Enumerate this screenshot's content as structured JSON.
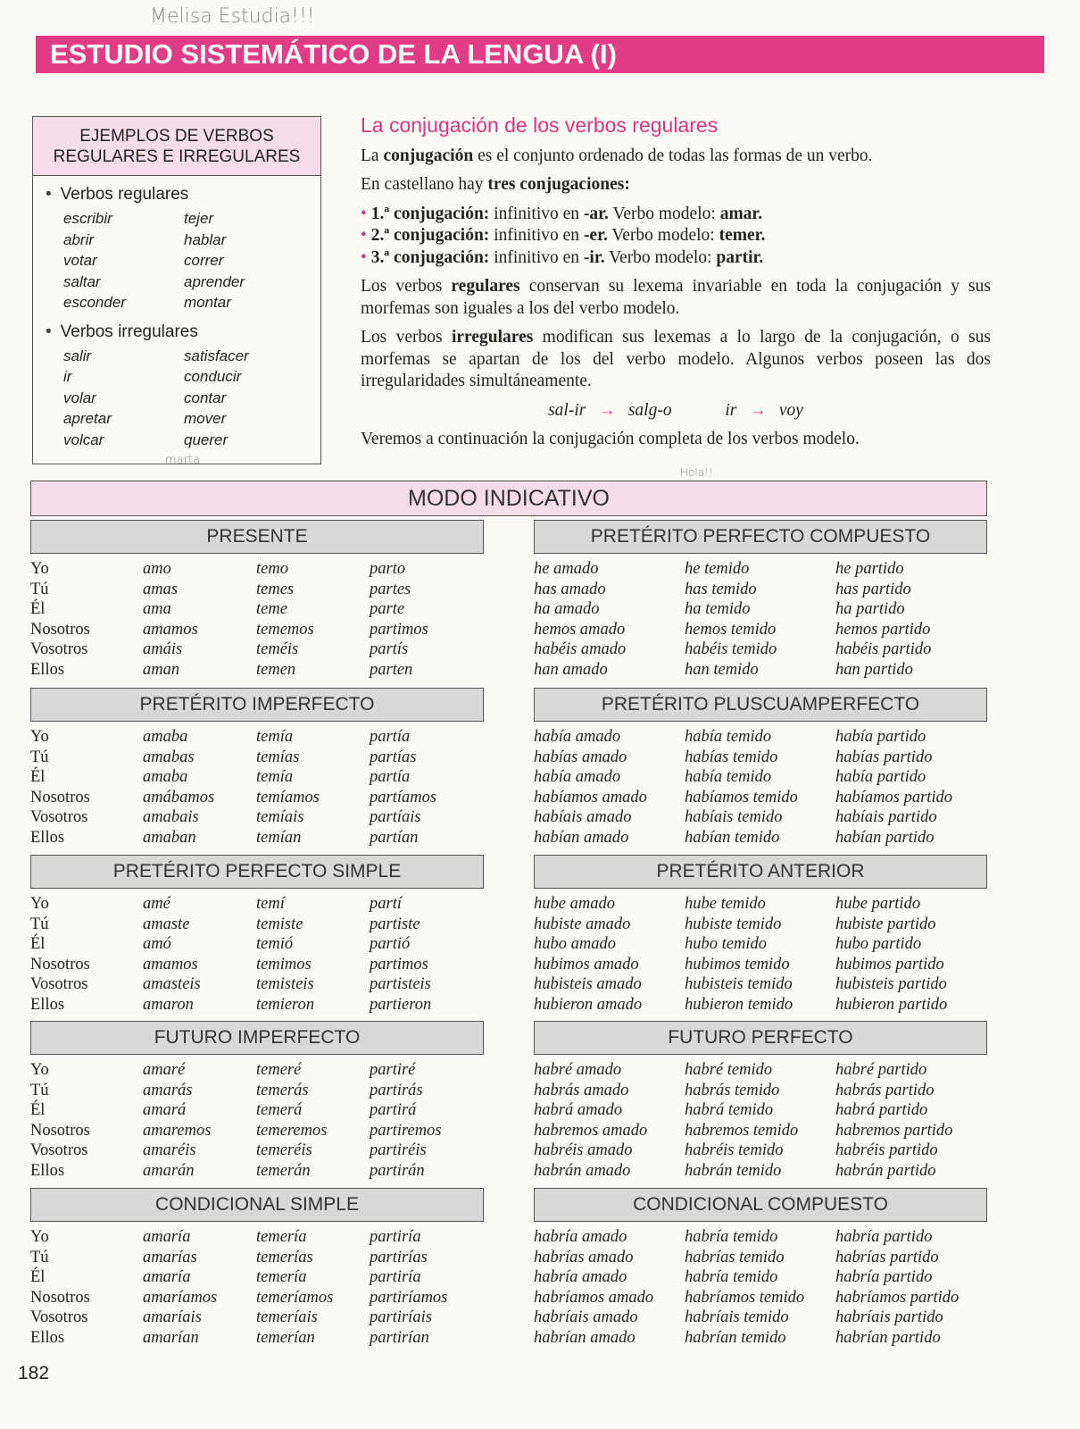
{
  "handwriting": {
    "top": "Melisa Estudia!!!",
    "box": "marta",
    "middle": "Hola!!"
  },
  "header": {
    "title": "ESTUDIO SISTEMÁTICO DE LA LENGUA (I)",
    "color": "#e23d84"
  },
  "sidebar": {
    "title_line1": "EJEMPLOS DE VERBOS",
    "title_line2": "REGULARES E IRREGULARES",
    "regular_label": "Verbos regulares",
    "regular": [
      "escribir",
      "tejer",
      "abrir",
      "hablar",
      "votar",
      "correr",
      "saltar",
      "aprender",
      "esconder",
      "montar"
    ],
    "irregular_label": "Verbos irregulares",
    "irregular": [
      "salir",
      "satisfacer",
      "ir",
      "conducir",
      "volar",
      "contar",
      "apretar",
      "mover",
      "volcar",
      "querer"
    ]
  },
  "article": {
    "title": "La conjugación de los verbos regulares",
    "p1": [
      "La ",
      "conjugación",
      " es el conjunto ordenado de todas las formas de un verbo."
    ],
    "p2": [
      "En castellano hay ",
      "tres conjugaciones:"
    ],
    "list": [
      [
        "1.ª conjugación:",
        " infinitivo en ",
        "-ar.",
        " Verbo modelo: ",
        "amar."
      ],
      [
        "2.ª conjugación:",
        " infinitivo en ",
        "-er.",
        " Verbo modelo: ",
        "temer."
      ],
      [
        "3.ª conjugación:",
        " infinitivo en ",
        "-ir.",
        " Verbo modelo: ",
        "partir."
      ]
    ],
    "p3": [
      "Los verbos ",
      "regulares",
      " conservan su lexema invariable en toda la conjugación y sus morfemas son iguales a los del verbo modelo."
    ],
    "p4": [
      "Los verbos ",
      "irregulares",
      " modifican sus lexemas a lo largo de la conjugación, o sus morfemas se apartan de los del verbo modelo. Algunos verbos poseen las dos irregularidades simultáneamente."
    ],
    "example": [
      "sal-ir",
      "salg-o",
      "ir",
      "voy"
    ],
    "p5": "Veremos a continuación la conjugación completa de los verbos modelo."
  },
  "modo": "MODO INDICATIVO",
  "pronouns": [
    "Yo",
    "Tú",
    "Él",
    "Nosotros",
    "Vosotros",
    "Ellos"
  ],
  "left_tenses": [
    {
      "title": "PRESENTE",
      "rows": [
        [
          "amo",
          "temo",
          "parto"
        ],
        [
          "amas",
          "temes",
          "partes"
        ],
        [
          "ama",
          "teme",
          "parte"
        ],
        [
          "amamos",
          "tememos",
          "partimos"
        ],
        [
          "amáis",
          "teméis",
          "partís"
        ],
        [
          "aman",
          "temen",
          "parten"
        ]
      ]
    },
    {
      "title": "PRETÉRITO IMPERFECTO",
      "rows": [
        [
          "amaba",
          "temía",
          "partía"
        ],
        [
          "amabas",
          "temías",
          "partías"
        ],
        [
          "amaba",
          "temía",
          "partía"
        ],
        [
          "amábamos",
          "temíamos",
          "partíamos"
        ],
        [
          "amabais",
          "temíais",
          "partíais"
        ],
        [
          "amaban",
          "temían",
          "partían"
        ]
      ]
    },
    {
      "title": "PRETÉRITO PERFECTO SIMPLE",
      "rows": [
        [
          "amé",
          "temí",
          "partí"
        ],
        [
          "amaste",
          "temiste",
          "partiste"
        ],
        [
          "amó",
          "temió",
          "partió"
        ],
        [
          "amamos",
          "temimos",
          "partimos"
        ],
        [
          "amasteis",
          "temisteis",
          "partisteis"
        ],
        [
          "amaron",
          "temieron",
          "partieron"
        ]
      ]
    },
    {
      "title": "FUTURO IMPERFECTO",
      "rows": [
        [
          "amaré",
          "temeré",
          "partiré"
        ],
        [
          "amarás",
          "temerás",
          "partirás"
        ],
        [
          "amará",
          "temerá",
          "partirá"
        ],
        [
          "amaremos",
          "temeremos",
          "partiremos"
        ],
        [
          "amaréis",
          "temeréis",
          "partiréis"
        ],
        [
          "amarán",
          "temerán",
          "partirán"
        ]
      ]
    },
    {
      "title": "CONDICIONAL SIMPLE",
      "rows": [
        [
          "amaría",
          "temería",
          "partiría"
        ],
        [
          "amarías",
          "temerías",
          "partirías"
        ],
        [
          "amaría",
          "temería",
          "partiría"
        ],
        [
          "amaríamos",
          "temeríamos",
          "partiríamos"
        ],
        [
          "amaríais",
          "temeríais",
          "partiríais"
        ],
        [
          "amarían",
          "temerían",
          "partirían"
        ]
      ]
    }
  ],
  "right_tenses": [
    {
      "title": "PRETÉRITO PERFECTO COMPUESTO",
      "rows": [
        [
          "he amado",
          "he temido",
          "he partido"
        ],
        [
          "has amado",
          "has temido",
          "has partido"
        ],
        [
          "ha amado",
          "ha temido",
          "ha partido"
        ],
        [
          "hemos amado",
          "hemos temido",
          "hemos partido"
        ],
        [
          "habéis amado",
          "habéis temido",
          "habéis partido"
        ],
        [
          "han amado",
          "han temido",
          "han partido"
        ]
      ]
    },
    {
      "title": "PRETÉRITO PLUSCUAMPERFECTO",
      "rows": [
        [
          "había amado",
          "había temido",
          "había partido"
        ],
        [
          "habías amado",
          "habías temido",
          "habías partido"
        ],
        [
          "había amado",
          "había temido",
          "había partido"
        ],
        [
          "habíamos amado",
          "habíamos temido",
          "habíamos partido"
        ],
        [
          "habíais amado",
          "habíais temido",
          "habíais partido"
        ],
        [
          "habían amado",
          "habían temido",
          "habían partido"
        ]
      ]
    },
    {
      "title": "PRETÉRITO ANTERIOR",
      "rows": [
        [
          "hube amado",
          "hube temido",
          "hube partido"
        ],
        [
          "hubiste amado",
          "hubiste temido",
          "hubiste partido"
        ],
        [
          "hubo amado",
          "hubo temido",
          "hubo partido"
        ],
        [
          "hubimos amado",
          "hubimos temido",
          "hubimos partido"
        ],
        [
          "hubisteis amado",
          "hubisteis temido",
          "hubisteis partido"
        ],
        [
          "hubieron amado",
          "hubieron temido",
          "hubieron partido"
        ]
      ]
    },
    {
      "title": "FUTURO PERFECTO",
      "rows": [
        [
          "habré amado",
          "habré temido",
          "habré partido"
        ],
        [
          "habrás amado",
          "habrás temido",
          "habrás partido"
        ],
        [
          "habrá amado",
          "habrá temido",
          "habrá partido"
        ],
        [
          "habremos amado",
          "habremos temido",
          "habremos partido"
        ],
        [
          "habréis amado",
          "habréis temido",
          "habréis partido"
        ],
        [
          "habrán amado",
          "habrán temido",
          "habrán partido"
        ]
      ]
    },
    {
      "title": "CONDICIONAL COMPUESTO",
      "rows": [
        [
          "habría amado",
          "habría temido",
          "habría partido"
        ],
        [
          "habrías amado",
          "habrías temido",
          "habrías partido"
        ],
        [
          "habría amado",
          "habría temido",
          "habría partido"
        ],
        [
          "habríamos amado",
          "habríamos temido",
          "habríamos partido"
        ],
        [
          "habríais amado",
          "habríais temido",
          "habríais partido"
        ],
        [
          "habrían amado",
          "habrían temido",
          "habrían partido"
        ]
      ]
    }
  ],
  "page_number": "182"
}
